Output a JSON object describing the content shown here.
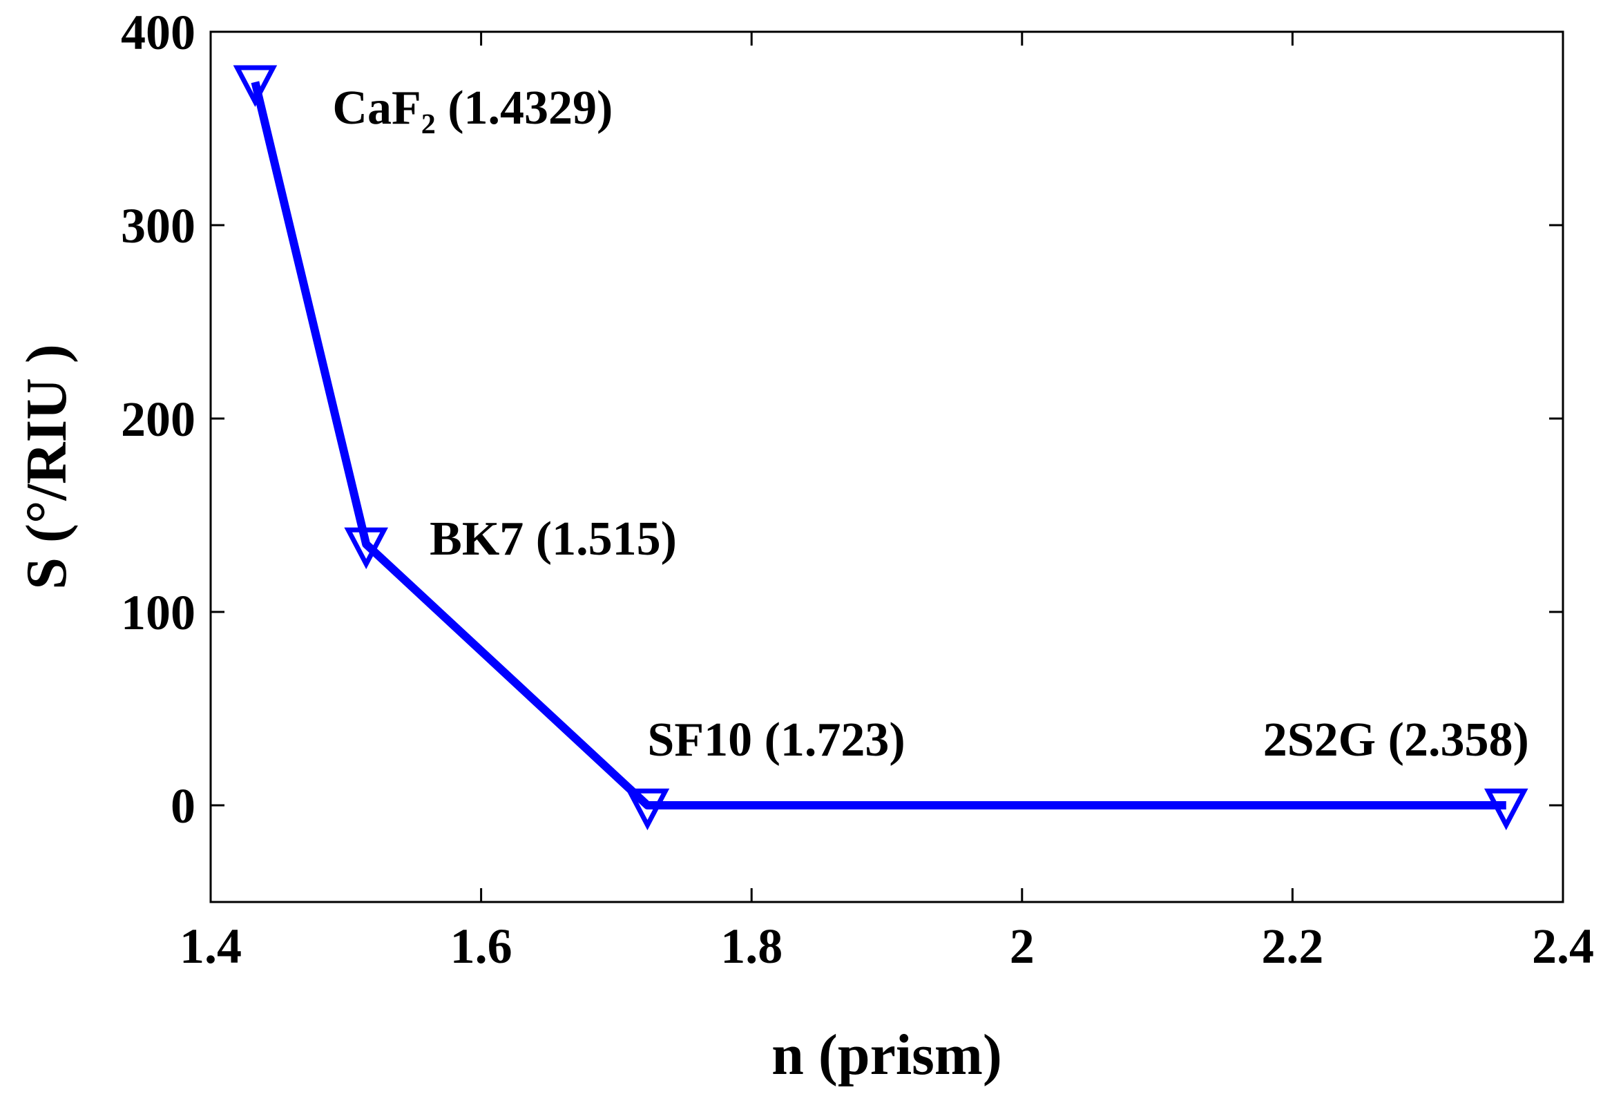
{
  "chart_data": {
    "type": "line",
    "x": [
      1.4329,
      1.515,
      1.723,
      2.358
    ],
    "series": [
      {
        "color": "#0000ff",
        "values": [
          374,
          135,
          0,
          0
        ]
      }
    ],
    "annotations": [
      "CaF₂ (1.4329)",
      "BK7 (1.515)",
      "SF10 (1.723)",
      "2S2G (2.358)"
    ],
    "xlabel": "n (prism)",
    "ylabel": "S  (°/RIU )",
    "xlim": [
      1.4,
      2.4
    ],
    "ylim": [
      -50,
      400
    ],
    "xticks": [
      1.4,
      1.6,
      1.8,
      2,
      2.2,
      2.4
    ],
    "yticks": [
      0,
      100,
      200,
      300,
      400
    ],
    "marker": "triangle-down"
  }
}
